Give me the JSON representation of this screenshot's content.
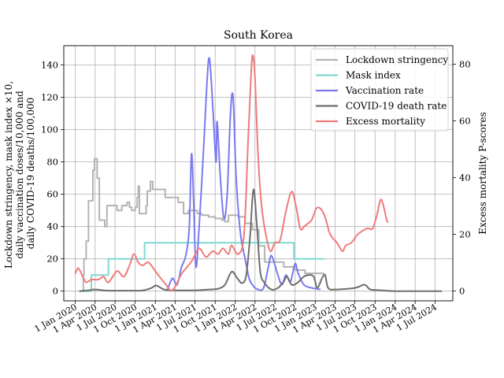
{
  "chart_data": {
    "type": "line",
    "title": "South Korea",
    "ylabel_left": [
      "Lockdown stringency, mask index ×10,",
      "daily vaccination doses/10,000 and",
      "daily COVID-19 deaths/100,000"
    ],
    "ylabel_right": "Excess mortality P-scores",
    "grid": true,
    "legend_position": "top-right",
    "ylim_left": [
      -6,
      152
    ],
    "ylim_right": [
      -3.5,
      86.5
    ],
    "left_ticks": [
      0,
      20,
      40,
      60,
      80,
      100,
      120,
      140
    ],
    "right_ticks": [
      0,
      20,
      40,
      60,
      80
    ],
    "x_ticks": [
      "1 Jan 2020",
      "1 Apr 2020",
      "1 Jul 2020",
      "1 Oct 2020",
      "1 Jan 2021",
      "1 Apr 2021",
      "1 Jul 2021",
      "1 Oct 2021",
      "1 Jan 2022",
      "1 Apr 2022",
      "1 Jul 2022",
      "1 Oct 2022",
      "1 Jan 2023",
      "1 Apr 2023",
      "1 Jul 2023",
      "1 Oct 2023",
      "1 Jan 2024",
      "1 Apr 2024",
      "1 Jul 2024"
    ],
    "xlim": [
      "2019-11-10",
      "2024-09-20"
    ],
    "series": [
      {
        "name": "Lockdown stringency",
        "color": "#b3b3b3",
        "axis": "left",
        "step": true,
        "points": [
          [
            "2020-01-20",
            0
          ],
          [
            "2020-02-05",
            0
          ],
          [
            "2020-02-07",
            10
          ],
          [
            "2020-02-10",
            20
          ],
          [
            "2020-02-20",
            31
          ],
          [
            "2020-03-02",
            56
          ],
          [
            "2020-03-22",
            75
          ],
          [
            "2020-03-29",
            82
          ],
          [
            "2020-04-10",
            70
          ],
          [
            "2020-04-20",
            44
          ],
          [
            "2020-05-10",
            44
          ],
          [
            "2020-05-15",
            40
          ],
          [
            "2020-05-25",
            53
          ],
          [
            "2020-06-20",
            53
          ],
          [
            "2020-07-10",
            50
          ],
          [
            "2020-08-01",
            53
          ],
          [
            "2020-08-20",
            53
          ],
          [
            "2020-08-25",
            55
          ],
          [
            "2020-09-05",
            52
          ],
          [
            "2020-09-15",
            50
          ],
          [
            "2020-10-01",
            52
          ],
          [
            "2020-10-10",
            58
          ],
          [
            "2020-10-15",
            65
          ],
          [
            "2020-10-20",
            48
          ],
          [
            "2020-11-20",
            53
          ],
          [
            "2020-11-25",
            62
          ],
          [
            "2020-12-10",
            68
          ],
          [
            "2020-12-20",
            63
          ],
          [
            "2021-02-15",
            58
          ],
          [
            "2021-04-01",
            58
          ],
          [
            "2021-04-15",
            55
          ],
          [
            "2021-05-10",
            48
          ],
          [
            "2021-06-01",
            50
          ],
          [
            "2021-07-12",
            48
          ],
          [
            "2021-08-01",
            47
          ],
          [
            "2021-09-01",
            46
          ],
          [
            "2021-10-01",
            45
          ],
          [
            "2021-11-01",
            44
          ],
          [
            "2021-11-15",
            43
          ],
          [
            "2021-12-01",
            47
          ],
          [
            "2022-01-15",
            46
          ],
          [
            "2022-02-15",
            42
          ],
          [
            "2022-03-20",
            38
          ],
          [
            "2022-04-18",
            28
          ],
          [
            "2022-05-15",
            18
          ],
          [
            "2022-08-10",
            15
          ],
          [
            "2022-10-01",
            13
          ],
          [
            "2022-11-15",
            11
          ],
          [
            "2023-02-10",
            11
          ]
        ]
      },
      {
        "name": "Mask index",
        "color": "#7fd8d1",
        "axis": "left",
        "step": true,
        "points": [
          [
            "2020-01-20",
            0
          ],
          [
            "2020-03-15",
            10
          ],
          [
            "2020-06-01",
            20
          ],
          [
            "2020-11-13",
            30
          ],
          [
            "2022-09-26",
            20
          ],
          [
            "2023-02-10",
            20
          ]
        ]
      },
      {
        "name": "Vaccination rate",
        "color": "#7a7af0",
        "axis": "left",
        "step": false,
        "points": [
          [
            "2021-02-26",
            1
          ],
          [
            "2021-03-20",
            8
          ],
          [
            "2021-04-10",
            4
          ],
          [
            "2021-05-01",
            15
          ],
          [
            "2021-05-20",
            22
          ],
          [
            "2021-06-05",
            40
          ],
          [
            "2021-06-15",
            85
          ],
          [
            "2021-06-25",
            55
          ],
          [
            "2021-07-05",
            15
          ],
          [
            "2021-07-20",
            40
          ],
          [
            "2021-08-10",
            90
          ],
          [
            "2021-08-25",
            130
          ],
          [
            "2021-09-05",
            144
          ],
          [
            "2021-09-20",
            115
          ],
          [
            "2021-10-05",
            80
          ],
          [
            "2021-10-10",
            105
          ],
          [
            "2021-10-25",
            70
          ],
          [
            "2021-11-10",
            45
          ],
          [
            "2021-11-25",
            60
          ],
          [
            "2021-12-10",
            110
          ],
          [
            "2021-12-22",
            120
          ],
          [
            "2022-01-05",
            70
          ],
          [
            "2022-01-25",
            35
          ],
          [
            "2022-02-15",
            20
          ],
          [
            "2022-03-05",
            8
          ],
          [
            "2022-03-25",
            3
          ],
          [
            "2022-04-15",
            1
          ],
          [
            "2022-05-10",
            2
          ],
          [
            "2022-06-01",
            15
          ],
          [
            "2022-06-15",
            22
          ],
          [
            "2022-07-10",
            12
          ],
          [
            "2022-08-01",
            4
          ],
          [
            "2022-08-20",
            10
          ],
          [
            "2022-09-10",
            6
          ],
          [
            "2022-10-01",
            17
          ],
          [
            "2022-10-15",
            11
          ],
          [
            "2022-11-10",
            4
          ],
          [
            "2022-12-15",
            2
          ],
          [
            "2023-01-25",
            1
          ]
        ]
      },
      {
        "name": "COVID-19 death rate",
        "color": "#6e6e6e",
        "axis": "left",
        "step": false,
        "points": [
          [
            "2020-01-20",
            0
          ],
          [
            "2020-03-01",
            0.5
          ],
          [
            "2020-04-01",
            1
          ],
          [
            "2020-06-01",
            0.3
          ],
          [
            "2020-09-01",
            0.3
          ],
          [
            "2020-11-01",
            0.4
          ],
          [
            "2020-12-15",
            2
          ],
          [
            "2021-01-05",
            3.5
          ],
          [
            "2021-02-10",
            1
          ],
          [
            "2021-04-01",
            0.5
          ],
          [
            "2021-07-01",
            0.5
          ],
          [
            "2021-09-01",
            1
          ],
          [
            "2021-10-15",
            1.5
          ],
          [
            "2021-11-15",
            4
          ],
          [
            "2021-12-15",
            12
          ],
          [
            "2022-01-10",
            8
          ],
          [
            "2022-02-01",
            5
          ],
          [
            "2022-02-20",
            10
          ],
          [
            "2022-03-10",
            35
          ],
          [
            "2022-03-25",
            63
          ],
          [
            "2022-04-10",
            40
          ],
          [
            "2022-04-25",
            12
          ],
          [
            "2022-05-15",
            5
          ],
          [
            "2022-06-15",
            1
          ],
          [
            "2022-07-15",
            2
          ],
          [
            "2022-08-10",
            6
          ],
          [
            "2022-08-25",
            9
          ],
          [
            "2022-09-15",
            4
          ],
          [
            "2022-10-10",
            5
          ],
          [
            "2022-11-10",
            9
          ],
          [
            "2022-12-01",
            10
          ],
          [
            "2022-12-25",
            9
          ],
          [
            "2023-01-10",
            2
          ],
          [
            "2023-02-01",
            8
          ],
          [
            "2023-02-15",
            10
          ],
          [
            "2023-03-01",
            2
          ],
          [
            "2023-04-01",
            1
          ],
          [
            "2023-07-01",
            2
          ],
          [
            "2023-08-10",
            4
          ],
          [
            "2023-08-25",
            3
          ],
          [
            "2023-09-10",
            1
          ],
          [
            "2023-11-01",
            0.5
          ],
          [
            "2024-01-01",
            0
          ],
          [
            "2024-08-01",
            0
          ]
        ]
      },
      {
        "name": "Excess mortality",
        "color": "#f07a7a",
        "axis": "right",
        "step": false,
        "points": [
          [
            "2020-01-01",
            6
          ],
          [
            "2020-01-15",
            8
          ],
          [
            "2020-02-05",
            5
          ],
          [
            "2020-02-20",
            3
          ],
          [
            "2020-03-15",
            4
          ],
          [
            "2020-04-15",
            4
          ],
          [
            "2020-05-10",
            5
          ],
          [
            "2020-06-01",
            3
          ],
          [
            "2020-07-10",
            7
          ],
          [
            "2020-08-10",
            5
          ],
          [
            "2020-09-05",
            9
          ],
          [
            "2020-09-25",
            13
          ],
          [
            "2020-10-15",
            10
          ],
          [
            "2020-11-05",
            9
          ],
          [
            "2020-12-01",
            10
          ],
          [
            "2021-01-10",
            6
          ],
          [
            "2021-02-20",
            2
          ],
          [
            "2021-03-15",
            0
          ],
          [
            "2021-04-05",
            2
          ],
          [
            "2021-05-01",
            6
          ],
          [
            "2021-06-01",
            9
          ],
          [
            "2021-06-20",
            11
          ],
          [
            "2021-07-20",
            15
          ],
          [
            "2021-08-20",
            12
          ],
          [
            "2021-09-20",
            14
          ],
          [
            "2021-10-15",
            13
          ],
          [
            "2021-11-05",
            15
          ],
          [
            "2021-12-01",
            13
          ],
          [
            "2021-12-15",
            16
          ],
          [
            "2022-01-15",
            13
          ],
          [
            "2022-02-10",
            20
          ],
          [
            "2022-02-28",
            52
          ],
          [
            "2022-03-15",
            78
          ],
          [
            "2022-03-23",
            83
          ],
          [
            "2022-04-01",
            75
          ],
          [
            "2022-04-15",
            48
          ],
          [
            "2022-05-01",
            30
          ],
          [
            "2022-05-20",
            20
          ],
          [
            "2022-06-10",
            14
          ],
          [
            "2022-07-01",
            17
          ],
          [
            "2022-07-25",
            18
          ],
          [
            "2022-08-20",
            28
          ],
          [
            "2022-09-15",
            35
          ],
          [
            "2022-10-05",
            30
          ],
          [
            "2022-10-25",
            22
          ],
          [
            "2022-11-15",
            23
          ],
          [
            "2022-12-15",
            25
          ],
          [
            "2023-01-05",
            29
          ],
          [
            "2023-01-25",
            29
          ],
          [
            "2023-02-15",
            26
          ],
          [
            "2023-03-10",
            20
          ],
          [
            "2023-04-10",
            17
          ],
          [
            "2023-05-05",
            14
          ],
          [
            "2023-05-20",
            16
          ],
          [
            "2023-06-15",
            17
          ],
          [
            "2023-07-15",
            20
          ],
          [
            "2023-08-25",
            22
          ],
          [
            "2023-09-20",
            22
          ],
          [
            "2023-10-10",
            27
          ],
          [
            "2023-10-25",
            32
          ],
          [
            "2023-11-05",
            31
          ],
          [
            "2023-11-20",
            26
          ],
          [
            "2023-11-28",
            24
          ]
        ]
      }
    ]
  }
}
